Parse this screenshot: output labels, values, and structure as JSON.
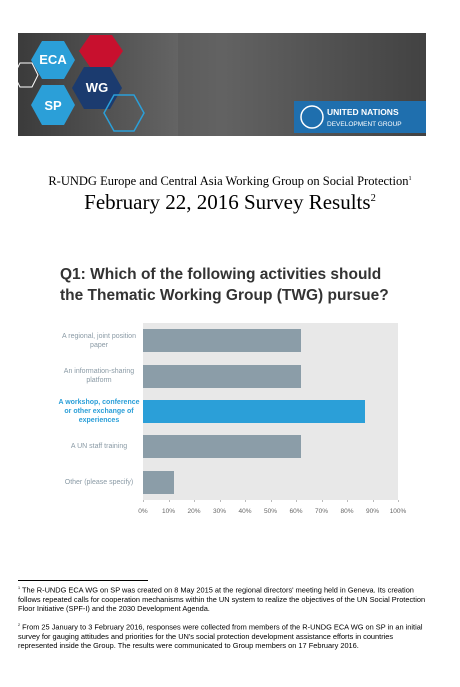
{
  "banner": {
    "hex_labels": [
      "ECA",
      "WG",
      "SP"
    ],
    "org_line1": "UNITED NATIONS",
    "org_line2": "DEVELOPMENT GROUP"
  },
  "heading": {
    "line1": "R-UNDG Europe and Central Asia Working Group on Social Protection",
    "line1_note": "1",
    "line2": "February 22, 2016 Survey Results",
    "line2_note": "2"
  },
  "chart_data": {
    "type": "hbar",
    "title": "Q1: Which of the following activities should the Thematic Working Group (TWG) pursue?",
    "categories": [
      "A regional, joint position paper",
      "An information-sharing platform",
      "A workshop, conference or other exchange of experiences",
      "A UN staff training",
      "Other (please specify)"
    ],
    "values": [
      62,
      62,
      87,
      62,
      12
    ],
    "color": "#8b9da8",
    "highlight_color": "#2b9fd8",
    "highlight_index": 2,
    "xlim": [
      0,
      100
    ],
    "xticks": [
      {
        "value": 0,
        "label": "0%"
      },
      {
        "value": 10,
        "label": "10%"
      },
      {
        "value": 20,
        "label": "20%"
      },
      {
        "value": 30,
        "label": "30%"
      },
      {
        "value": 40,
        "label": "40%"
      },
      {
        "value": 50,
        "label": "50%"
      },
      {
        "value": 60,
        "label": "60%"
      },
      {
        "value": 70,
        "label": "70%"
      },
      {
        "value": 80,
        "label": "80%"
      },
      {
        "value": 90,
        "label": "90%"
      },
      {
        "value": 100,
        "label": "100%"
      }
    ]
  },
  "footnotes": [
    {
      "mark": "1",
      "text": "The R-UNDG ECA WG on SP was created on 8 May 2015 at the regional directors' meeting held in Geneva. Its creation follows repeated calls for cooperation mechanisms within the UN system to realize the objectives of the UN Social Protection Floor Initiative (SPF-I) and the 2030 Development Agenda."
    },
    {
      "mark": "2",
      "text": "From 25 January to 3 February 2016, responses were collected from members of the R-UNDG ECA WG on SP in an initial survey for gauging attitudes and priorities for the UN's social protection development assistance efforts in countries represented inside the Group. The results were communicated to Group members on 17 February 2016."
    }
  ]
}
